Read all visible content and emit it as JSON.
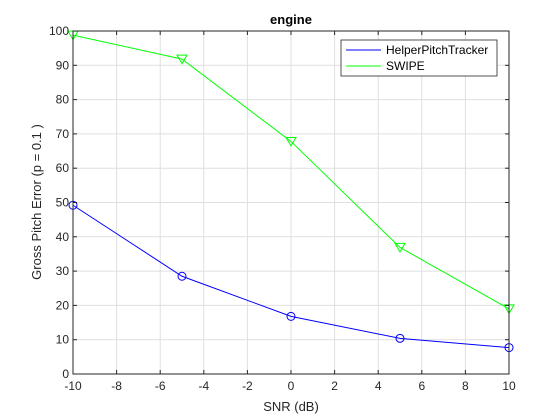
{
  "chart_data": {
    "type": "line",
    "title": "engine",
    "xlabel": "SNR (dB)",
    "ylabel": "Gross Pitch Error (p = 0.1 )",
    "xlim": [
      -10,
      10
    ],
    "ylim": [
      0,
      100
    ],
    "xticks": [
      -10,
      -8,
      -6,
      -4,
      -2,
      0,
      2,
      4,
      6,
      8,
      10
    ],
    "yticks": [
      0,
      10,
      20,
      30,
      40,
      50,
      60,
      70,
      80,
      90,
      100
    ],
    "grid": true,
    "legend_position": "top-right",
    "x": [
      -10,
      -5,
      0,
      5,
      10
    ],
    "series": [
      {
        "name": "HelperPitchTracker",
        "values": [
          49.2,
          28.5,
          16.8,
          10.4,
          7.7
        ],
        "color": "#0000ff",
        "marker": "circle"
      },
      {
        "name": "SWIPE",
        "values": [
          98.8,
          91.8,
          67.8,
          36.9,
          19.0
        ],
        "color": "#00ff00",
        "marker": "triangle-down"
      }
    ]
  }
}
